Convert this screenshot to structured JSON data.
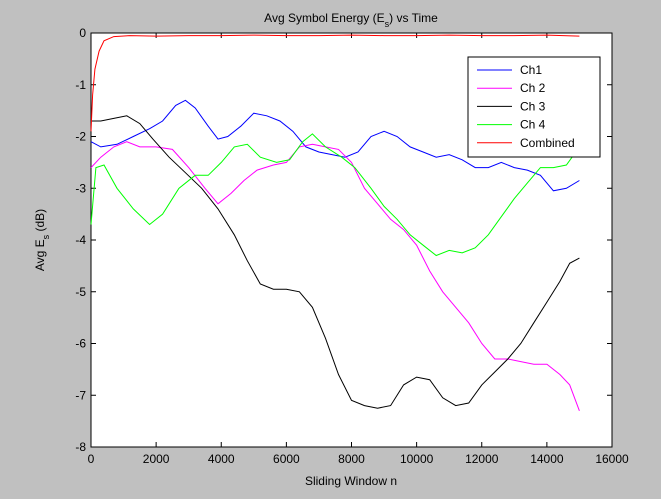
{
  "chart_data": {
    "type": "line",
    "title": {
      "pre": "Avg Symbol Energy (E",
      "sub": "s",
      "post": ") vs Time"
    },
    "xlabel": "Sliding Window n",
    "ylabel": {
      "pre": "Avg E",
      "sub": "s",
      "post": " (dB)"
    },
    "xlim": [
      0,
      16000
    ],
    "ylim": [
      -8,
      0
    ],
    "x_ticks": [
      0,
      2000,
      4000,
      6000,
      8000,
      10000,
      12000,
      14000,
      16000
    ],
    "y_ticks": [
      0,
      -1,
      -2,
      -3,
      -4,
      -5,
      -6,
      -7,
      -8
    ],
    "grid": false,
    "legend_position": "top-right",
    "series": [
      {
        "name": "Ch1",
        "color": "#0000ff",
        "points": [
          [
            0,
            -2.1
          ],
          [
            300,
            -2.2
          ],
          [
            800,
            -2.15
          ],
          [
            1300,
            -2.0
          ],
          [
            1800,
            -1.85
          ],
          [
            2200,
            -1.7
          ],
          [
            2600,
            -1.4
          ],
          [
            2900,
            -1.3
          ],
          [
            3200,
            -1.45
          ],
          [
            3600,
            -1.8
          ],
          [
            3900,
            -2.05
          ],
          [
            4200,
            -2.0
          ],
          [
            4600,
            -1.8
          ],
          [
            5000,
            -1.55
          ],
          [
            5400,
            -1.6
          ],
          [
            5800,
            -1.7
          ],
          [
            6200,
            -1.9
          ],
          [
            6600,
            -2.2
          ],
          [
            7000,
            -2.3
          ],
          [
            7400,
            -2.35
          ],
          [
            7800,
            -2.4
          ],
          [
            8200,
            -2.3
          ],
          [
            8600,
            -2.0
          ],
          [
            9000,
            -1.9
          ],
          [
            9400,
            -2.0
          ],
          [
            9800,
            -2.2
          ],
          [
            10200,
            -2.3
          ],
          [
            10600,
            -2.4
          ],
          [
            11000,
            -2.35
          ],
          [
            11400,
            -2.45
          ],
          [
            11800,
            -2.6
          ],
          [
            12200,
            -2.6
          ],
          [
            12600,
            -2.5
          ],
          [
            13000,
            -2.6
          ],
          [
            13400,
            -2.65
          ],
          [
            13800,
            -2.75
          ],
          [
            14200,
            -3.05
          ],
          [
            14600,
            -3.0
          ],
          [
            15000,
            -2.85
          ]
        ]
      },
      {
        "name": "Ch 2",
        "color": "#ff00ff",
        "points": [
          [
            0,
            -2.6
          ],
          [
            300,
            -2.4
          ],
          [
            700,
            -2.2
          ],
          [
            1100,
            -2.1
          ],
          [
            1500,
            -2.2
          ],
          [
            2000,
            -2.2
          ],
          [
            2500,
            -2.25
          ],
          [
            3000,
            -2.6
          ],
          [
            3500,
            -3.0
          ],
          [
            3900,
            -3.3
          ],
          [
            4300,
            -3.1
          ],
          [
            4700,
            -2.85
          ],
          [
            5100,
            -2.65
          ],
          [
            5600,
            -2.55
          ],
          [
            6000,
            -2.5
          ],
          [
            6400,
            -2.2
          ],
          [
            6800,
            -2.15
          ],
          [
            7200,
            -2.2
          ],
          [
            7600,
            -2.25
          ],
          [
            8000,
            -2.5
          ],
          [
            8400,
            -3.0
          ],
          [
            8800,
            -3.3
          ],
          [
            9200,
            -3.6
          ],
          [
            9600,
            -3.8
          ],
          [
            10000,
            -4.1
          ],
          [
            10400,
            -4.6
          ],
          [
            10800,
            -5.0
          ],
          [
            11200,
            -5.3
          ],
          [
            11600,
            -5.6
          ],
          [
            12000,
            -6.0
          ],
          [
            12400,
            -6.3
          ],
          [
            12800,
            -6.3
          ],
          [
            13200,
            -6.35
          ],
          [
            13600,
            -6.4
          ],
          [
            14000,
            -6.4
          ],
          [
            14400,
            -6.6
          ],
          [
            14700,
            -6.8
          ],
          [
            15000,
            -7.3
          ]
        ]
      },
      {
        "name": "Ch 3",
        "color": "#000000",
        "points": [
          [
            0,
            -1.7
          ],
          [
            300,
            -1.7
          ],
          [
            700,
            -1.65
          ],
          [
            1100,
            -1.6
          ],
          [
            1500,
            -1.75
          ],
          [
            1900,
            -2.05
          ],
          [
            2400,
            -2.4
          ],
          [
            2900,
            -2.7
          ],
          [
            3400,
            -3.0
          ],
          [
            3900,
            -3.4
          ],
          [
            4400,
            -3.9
          ],
          [
            4800,
            -4.4
          ],
          [
            5200,
            -4.85
          ],
          [
            5600,
            -4.95
          ],
          [
            6000,
            -4.95
          ],
          [
            6400,
            -5.0
          ],
          [
            6800,
            -5.3
          ],
          [
            7200,
            -5.9
          ],
          [
            7600,
            -6.6
          ],
          [
            8000,
            -7.1
          ],
          [
            8400,
            -7.2
          ],
          [
            8800,
            -7.25
          ],
          [
            9200,
            -7.2
          ],
          [
            9600,
            -6.8
          ],
          [
            10000,
            -6.65
          ],
          [
            10400,
            -6.7
          ],
          [
            10800,
            -7.05
          ],
          [
            11200,
            -7.2
          ],
          [
            11600,
            -7.15
          ],
          [
            12000,
            -6.8
          ],
          [
            12400,
            -6.55
          ],
          [
            12800,
            -6.3
          ],
          [
            13200,
            -6.0
          ],
          [
            13600,
            -5.6
          ],
          [
            14000,
            -5.2
          ],
          [
            14400,
            -4.8
          ],
          [
            14700,
            -4.45
          ],
          [
            15000,
            -4.35
          ]
        ]
      },
      {
        "name": "Ch 4",
        "color": "#00ff00",
        "points": [
          [
            0,
            -3.7
          ],
          [
            150,
            -2.6
          ],
          [
            400,
            -2.55
          ],
          [
            800,
            -3.0
          ],
          [
            1300,
            -3.4
          ],
          [
            1800,
            -3.7
          ],
          [
            2200,
            -3.5
          ],
          [
            2700,
            -3.0
          ],
          [
            3200,
            -2.75
          ],
          [
            3600,
            -2.75
          ],
          [
            4000,
            -2.5
          ],
          [
            4400,
            -2.2
          ],
          [
            4800,
            -2.15
          ],
          [
            5200,
            -2.4
          ],
          [
            5700,
            -2.5
          ],
          [
            6100,
            -2.45
          ],
          [
            6500,
            -2.1
          ],
          [
            6800,
            -1.95
          ],
          [
            7200,
            -2.2
          ],
          [
            7700,
            -2.4
          ],
          [
            8100,
            -2.6
          ],
          [
            8600,
            -3.0
          ],
          [
            9000,
            -3.35
          ],
          [
            9400,
            -3.6
          ],
          [
            9800,
            -3.9
          ],
          [
            10200,
            -4.1
          ],
          [
            10600,
            -4.3
          ],
          [
            11000,
            -4.2
          ],
          [
            11400,
            -4.25
          ],
          [
            11800,
            -4.15
          ],
          [
            12200,
            -3.9
          ],
          [
            12600,
            -3.55
          ],
          [
            13000,
            -3.2
          ],
          [
            13400,
            -2.9
          ],
          [
            13800,
            -2.6
          ],
          [
            14200,
            -2.6
          ],
          [
            14600,
            -2.55
          ],
          [
            15000,
            -2.2
          ]
        ]
      },
      {
        "name": "Combined",
        "color": "#ff0000",
        "points": [
          [
            0,
            -1.9
          ],
          [
            50,
            -1.2
          ],
          [
            120,
            -0.7
          ],
          [
            250,
            -0.35
          ],
          [
            400,
            -0.15
          ],
          [
            700,
            -0.07
          ],
          [
            1200,
            -0.05
          ],
          [
            2000,
            -0.06
          ],
          [
            3000,
            -0.05
          ],
          [
            4000,
            -0.05
          ],
          [
            5000,
            -0.04
          ],
          [
            6000,
            -0.05
          ],
          [
            7000,
            -0.05
          ],
          [
            8000,
            -0.04
          ],
          [
            9000,
            -0.05
          ],
          [
            10000,
            -0.05
          ],
          [
            11000,
            -0.04
          ],
          [
            12000,
            -0.05
          ],
          [
            13000,
            -0.05
          ],
          [
            14000,
            -0.04
          ],
          [
            15000,
            -0.06
          ]
        ]
      }
    ]
  }
}
